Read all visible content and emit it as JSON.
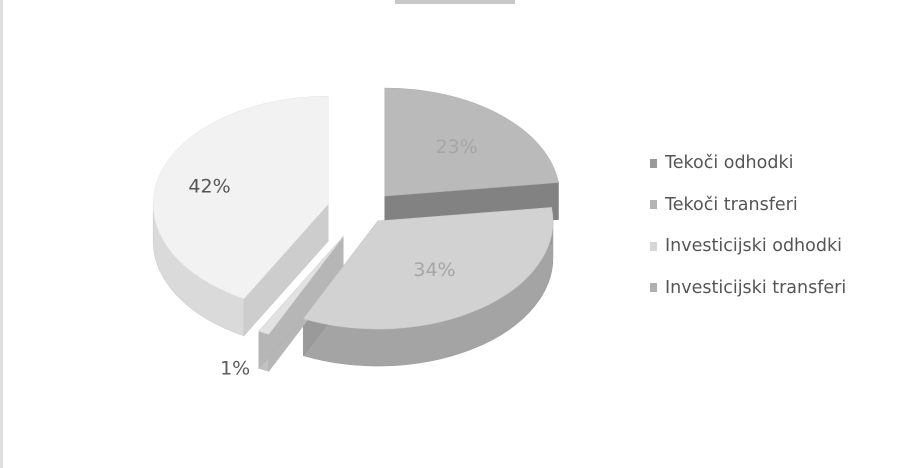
{
  "chart_data": {
    "type": "pie",
    "style": "3d-exploded",
    "categories": [
      "Tekoči odhodki",
      "Tekoči transferi",
      "Investicijski odhodki",
      "Investicijski transferi"
    ],
    "values": [
      23,
      34,
      1,
      42
    ],
    "data_labels": [
      "23%",
      "34%",
      "1%",
      "42%"
    ],
    "colors": [
      "#bababa",
      "#d2d2d2",
      "#e2e2e2",
      "#f2f2f2"
    ],
    "legend_position": "right",
    "title": ""
  }
}
